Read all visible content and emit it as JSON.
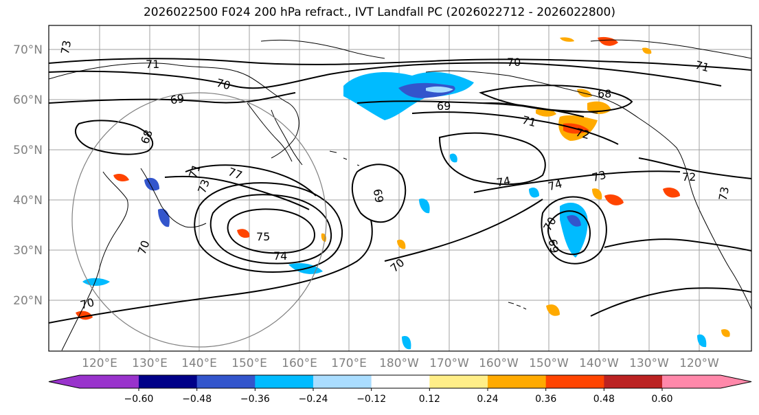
{
  "title": "2026022500 F024 200 hPa refract., IVT Landfall PC (2026022712 - 2026022800)",
  "map": {
    "lat_labels": [
      "70°N",
      "60°N",
      "50°N",
      "40°N",
      "30°N",
      "20°N"
    ],
    "lon_labels": [
      "120°E",
      "130°E",
      "140°E",
      "150°E",
      "160°E",
      "170°E",
      "180°W",
      "170°W",
      "160°W",
      "150°W",
      "140°W",
      "130°W",
      "120°W"
    ],
    "contour_labels": [
      "73",
      "71",
      "70",
      "69",
      "68",
      "71",
      "73",
      "77",
      "75",
      "74",
      "70",
      "70",
      "69",
      "69",
      "70",
      "71",
      "68",
      "72",
      "74",
      "74",
      "73",
      "70",
      "69",
      "72",
      "73",
      "71",
      "70"
    ],
    "colors": {
      "land_outline": "#000000",
      "grid": "#a0a0a0",
      "contour": "#000000"
    }
  },
  "colorbar": {
    "ticks": [
      "−0.60",
      "−0.48",
      "−0.36",
      "−0.24",
      "−0.12",
      "0.12",
      "0.24",
      "0.36",
      "0.48",
      "0.60"
    ],
    "colors": [
      "#9933cc",
      "#000088",
      "#3355cc",
      "#00bbff",
      "#aaddff",
      "#ffffff",
      "#ffee88",
      "#ffaa00",
      "#ff4400",
      "#bb2222",
      "#ff88aa"
    ]
  }
}
